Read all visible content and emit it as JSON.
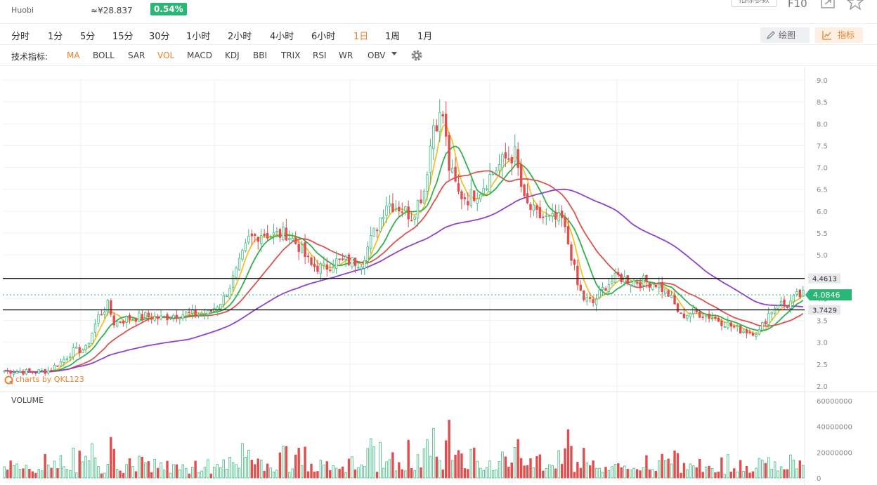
{
  "header": {
    "exchange": "Huobi",
    "cny_price": "≈¥28.837",
    "change_pct": "0.54%",
    "param_button": "指标参数",
    "f10_label": "F10"
  },
  "periods": [
    "分时",
    "1分",
    "5分",
    "15分",
    "30分",
    "1小时",
    "2小时",
    "4小时",
    "6小时",
    "1日",
    "1周",
    "1月"
  ],
  "active_period": "1日",
  "tools": {
    "draw": "绘图",
    "indicators": "指标"
  },
  "indicator_bar": {
    "label": "技术指标:",
    "items": [
      "MA",
      "BOLL",
      "SAR",
      "VOL",
      "MACD",
      "KDJ",
      "BBI",
      "TRIX",
      "RSI",
      "WR",
      "OBV"
    ],
    "active": [
      "MA",
      "VOL"
    ]
  },
  "watermark": "charts by QKL123",
  "volume_label": "VOLUME",
  "colors": {
    "up": "#3dbb7e",
    "down": "#e04e4e",
    "ma5": "#f2c12e",
    "ma10": "#2fb14d",
    "ma20": "#d9534f",
    "ma60": "#8e44c9",
    "accent": "#e8812f",
    "current_price_tag": "#2ab677"
  },
  "chart_data": {
    "type": "candlestick",
    "price_axis": {
      "ticks": [
        "9.0",
        "8.5",
        "8.0",
        "7.5",
        "7.0",
        "6.5",
        "6.0",
        "5.5",
        "5.0",
        "4.5",
        "4.0",
        "3.5",
        "3.0",
        "2.5",
        "2.0"
      ],
      "ylim": [
        2.0,
        9.0
      ]
    },
    "volume_axis": {
      "ticks": [
        "60000000",
        "40000000",
        "20000000",
        "0"
      ],
      "ylim": [
        0,
        60000000
      ]
    },
    "horizontal_lines": [
      {
        "label": "4.4613",
        "value": 4.4613
      },
      {
        "label": "3.7429",
        "value": 3.7429
      }
    ],
    "current_price": {
      "label": "4.0846",
      "value": 4.0846
    },
    "close_anchors": [
      [
        0,
        2.35
      ],
      [
        8,
        2.32
      ],
      [
        14,
        2.35
      ],
      [
        18,
        2.55
      ],
      [
        22,
        2.8
      ],
      [
        26,
        2.85
      ],
      [
        30,
        3.6
      ],
      [
        33,
        3.85
      ],
      [
        35,
        3.45
      ],
      [
        40,
        3.55
      ],
      [
        45,
        3.6
      ],
      [
        50,
        3.55
      ],
      [
        55,
        3.65
      ],
      [
        60,
        3.65
      ],
      [
        65,
        3.65
      ],
      [
        70,
        4.0
      ],
      [
        74,
        4.6
      ],
      [
        78,
        5.35
      ],
      [
        82,
        5.5
      ],
      [
        86,
        5.45
      ],
      [
        90,
        5.5
      ],
      [
        94,
        5.2
      ],
      [
        98,
        4.75
      ],
      [
        102,
        4.7
      ],
      [
        106,
        4.85
      ],
      [
        110,
        4.85
      ],
      [
        114,
        4.85
      ],
      [
        118,
        5.5
      ],
      [
        122,
        6.2
      ],
      [
        126,
        6.1
      ],
      [
        130,
        5.9
      ],
      [
        134,
        6.5
      ],
      [
        137,
        8.0
      ],
      [
        140,
        8.2
      ],
      [
        142,
        7.0
      ],
      [
        145,
        6.4
      ],
      [
        148,
        6.3
      ],
      [
        152,
        6.5
      ],
      [
        156,
        6.9
      ],
      [
        160,
        7.2
      ],
      [
        163,
        7.3
      ],
      [
        166,
        6.2
      ],
      [
        170,
        5.9
      ],
      [
        174,
        5.8
      ],
      [
        178,
        5.8
      ],
      [
        181,
        5.0
      ],
      [
        183,
        4.3
      ],
      [
        185,
        4.0
      ],
      [
        188,
        3.9
      ],
      [
        192,
        4.3
      ],
      [
        196,
        4.5
      ],
      [
        200,
        4.4
      ],
      [
        204,
        4.4
      ],
      [
        208,
        4.35
      ],
      [
        212,
        4.1
      ],
      [
        216,
        3.6
      ],
      [
        220,
        3.7
      ],
      [
        225,
        3.6
      ],
      [
        230,
        3.45
      ],
      [
        234,
        3.3
      ],
      [
        238,
        3.25
      ],
      [
        241,
        3.25
      ],
      [
        244,
        3.65
      ],
      [
        247,
        3.9
      ],
      [
        250,
        3.85
      ],
      [
        253,
        4.05
      ],
      [
        255,
        4.08
      ]
    ],
    "ma_periods": [
      5,
      10,
      20,
      60
    ]
  }
}
